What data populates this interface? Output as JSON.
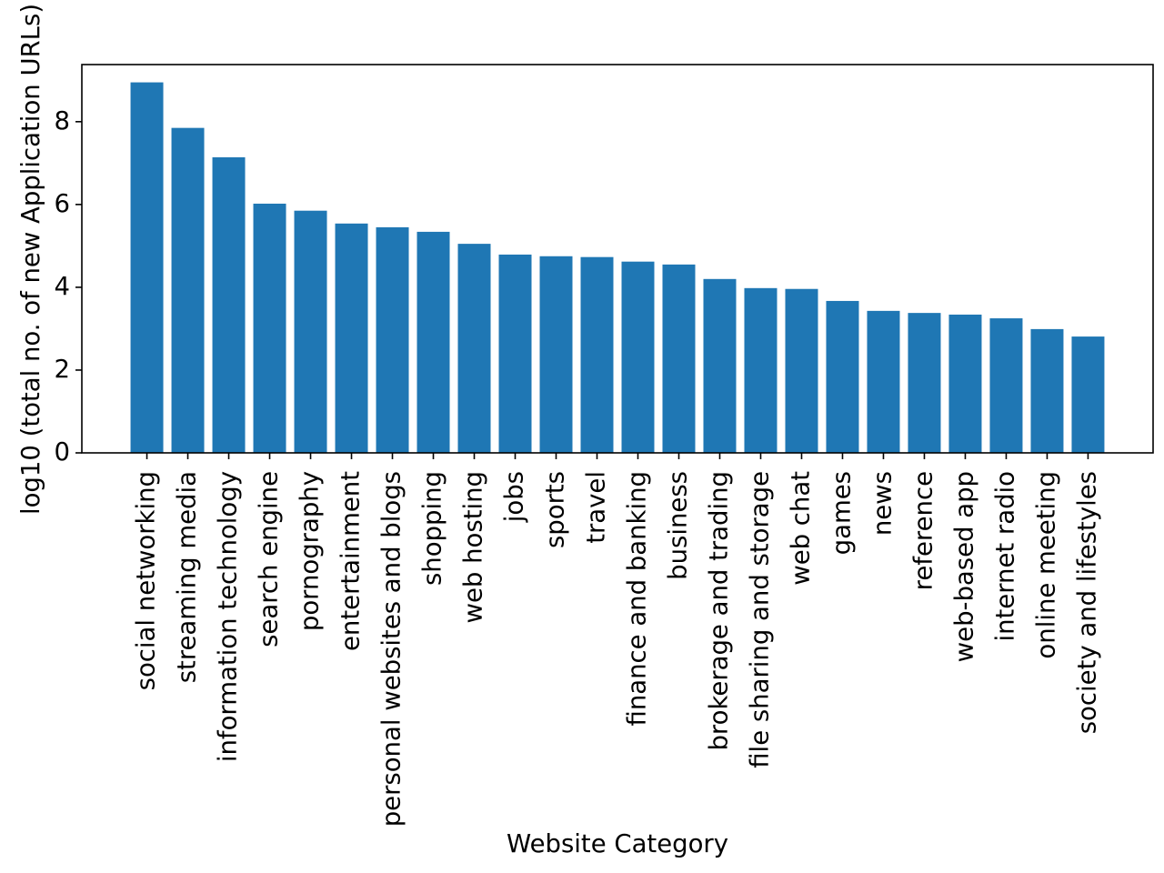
{
  "chart_data": {
    "type": "bar",
    "xlabel": "Website Category",
    "ylabel": "log10 (total no. of new Application URLs)",
    "categories": [
      "social networking",
      "streaming media",
      "information technology",
      "search engine",
      "pornography",
      "entertainment",
      "personal websites and blogs",
      "shopping",
      "web hosting",
      "jobs",
      "sports",
      "travel",
      "finance and banking",
      "business",
      "brokerage and trading",
      "file sharing and storage",
      "web chat",
      "games",
      "news",
      "reference",
      "web-based app",
      "internet radio",
      "online meeting",
      "society and lifestyles"
    ],
    "values": [
      8.95,
      7.85,
      7.14,
      6.02,
      5.85,
      5.54,
      5.45,
      5.34,
      5.05,
      4.79,
      4.75,
      4.73,
      4.62,
      4.55,
      4.2,
      3.98,
      3.96,
      3.67,
      3.43,
      3.38,
      3.34,
      3.25,
      2.99,
      2.81
    ],
    "color": "#1f77b4",
    "ylim": [
      0,
      9.38
    ],
    "yticks": [
      0,
      2,
      4,
      6,
      8
    ],
    "grid": false
  }
}
